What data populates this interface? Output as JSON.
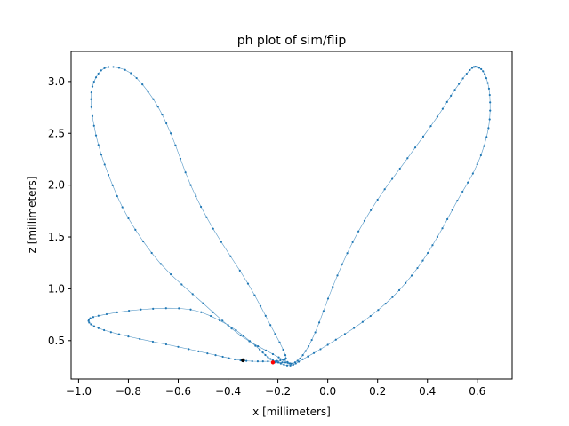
{
  "chart_data": {
    "type": "line",
    "title": "ph plot of sim/flip",
    "xlabel": "x [millimeters]",
    "ylabel": "z [millimeters]",
    "xlim": [
      -1.03,
      0.74
    ],
    "ylim": [
      0.13,
      3.29
    ],
    "xticks": [
      -1.0,
      -0.8,
      -0.6,
      -0.4,
      -0.2,
      0.0,
      0.2,
      0.4,
      0.6
    ],
    "xtick_labels": [
      "−1.0",
      "−0.8",
      "−0.6",
      "−0.4",
      "−0.2",
      "0.0",
      "0.2",
      "0.4",
      "0.6"
    ],
    "yticks": [
      0.5,
      1.0,
      1.5,
      2.0,
      2.5,
      3.0
    ],
    "ytick_labels": [
      "0.5",
      "1.0",
      "1.5",
      "2.0",
      "2.5",
      "3.0"
    ],
    "grid": false,
    "series_color": "#1f77b4",
    "control_points": [
      [
        -0.22,
        0.29
      ],
      [
        -0.17,
        0.29
      ],
      [
        -0.14,
        0.28
      ],
      [
        -0.1,
        0.36
      ],
      [
        -0.05,
        0.58
      ],
      [
        0.02,
        1.02
      ],
      [
        0.1,
        1.45
      ],
      [
        0.2,
        1.86
      ],
      [
        0.32,
        2.26
      ],
      [
        0.44,
        2.66
      ],
      [
        0.51,
        2.92
      ],
      [
        0.57,
        3.11
      ],
      [
        0.6,
        3.14
      ],
      [
        0.63,
        3.07
      ],
      [
        0.65,
        2.87
      ],
      [
        0.645,
        2.55
      ],
      [
        0.6,
        2.2
      ],
      [
        0.52,
        1.85
      ],
      [
        0.44,
        1.5
      ],
      [
        0.36,
        1.2
      ],
      [
        0.26,
        0.92
      ],
      [
        0.14,
        0.68
      ],
      [
        0.0,
        0.46
      ],
      [
        -0.1,
        0.32
      ],
      [
        -0.15,
        0.26
      ],
      [
        -0.2,
        0.29
      ],
      [
        -0.24,
        0.34
      ],
      [
        -0.29,
        0.45
      ],
      [
        -0.4,
        0.65
      ],
      [
        -0.55,
        0.8
      ],
      [
        -0.75,
        0.8
      ],
      [
        -0.92,
        0.74
      ],
      [
        -0.96,
        0.69
      ],
      [
        -0.92,
        0.62
      ],
      [
        -0.8,
        0.54
      ],
      [
        -0.6,
        0.44
      ],
      [
        -0.45,
        0.36
      ],
      [
        -0.35,
        0.31
      ],
      [
        -0.26,
        0.3
      ],
      [
        -0.19,
        0.31
      ],
      [
        -0.17,
        0.36
      ],
      [
        -0.23,
        0.65
      ],
      [
        -0.32,
        1.05
      ],
      [
        -0.46,
        1.58
      ],
      [
        -0.55,
        2.0
      ],
      [
        -0.63,
        2.5
      ],
      [
        -0.7,
        2.83
      ],
      [
        -0.79,
        3.08
      ],
      [
        -0.88,
        3.14
      ],
      [
        -0.93,
        3.04
      ],
      [
        -0.95,
        2.83
      ],
      [
        -0.93,
        2.48
      ],
      [
        -0.88,
        2.1
      ],
      [
        -0.8,
        1.68
      ],
      [
        -0.67,
        1.24
      ],
      [
        -0.5,
        0.86
      ],
      [
        -0.35,
        0.55
      ],
      [
        -0.22,
        0.37
      ],
      [
        -0.15,
        0.28
      ]
    ],
    "samples_per_segment": 4,
    "start_point": {
      "x": -0.34,
      "y": 0.31,
      "color": "#000000"
    },
    "end_point": {
      "x": -0.22,
      "y": 0.29,
      "color": "#ff0000"
    }
  }
}
